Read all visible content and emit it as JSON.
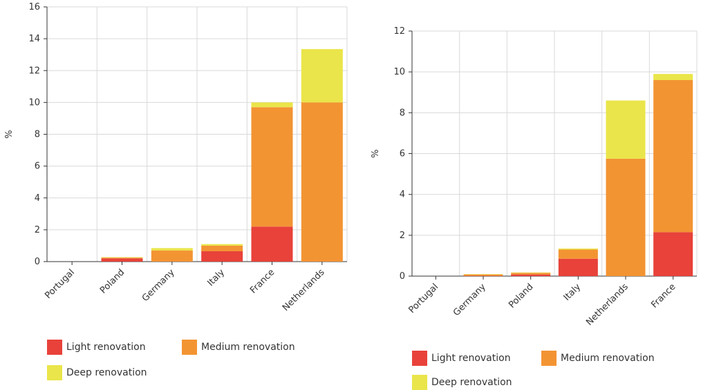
{
  "chart_data": [
    {
      "type": "bar",
      "stacked": true,
      "categories": [
        "Portugal",
        "Poland",
        "Germany",
        "Italy",
        "France",
        "Netherlands"
      ],
      "series": [
        {
          "name": "Light renovation",
          "color": "#e8423a",
          "values": [
            0,
            0.2,
            0,
            0.65,
            2.2,
            0
          ]
        },
        {
          "name": "Medium renovation",
          "color": "#f39433",
          "values": [
            0,
            0.05,
            0.7,
            0.35,
            7.5,
            10.0
          ]
        },
        {
          "name": "Deep renovation",
          "color": "#eae54a",
          "values": [
            0,
            0.03,
            0.15,
            0.1,
            0.3,
            3.35
          ]
        }
      ],
      "ylabel": "%",
      "ylim": [
        0,
        16
      ],
      "yticks": [
        "0",
        "2",
        "4",
        "6",
        "8",
        "10",
        "12",
        "14",
        "16"
      ],
      "grid": true,
      "legend": "bottom"
    },
    {
      "type": "bar",
      "stacked": true,
      "categories": [
        "Portugal",
        "Germany",
        "Poland",
        "Italy",
        "Netherlands",
        "France"
      ],
      "series": [
        {
          "name": "Light renovation",
          "color": "#e8423a",
          "values": [
            0,
            0.02,
            0.08,
            0.85,
            0,
            2.15
          ]
        },
        {
          "name": "Medium renovation",
          "color": "#f39433",
          "values": [
            0,
            0.06,
            0.08,
            0.45,
            5.75,
            7.45
          ]
        },
        {
          "name": "Deep renovation",
          "color": "#eae54a",
          "values": [
            0,
            0.02,
            0.02,
            0.05,
            2.85,
            0.3
          ]
        }
      ],
      "ylabel": "%",
      "ylim": [
        0,
        12
      ],
      "yticks": [
        "0",
        "2",
        "4",
        "6",
        "8",
        "10",
        "12"
      ],
      "grid": true,
      "legend": "bottom"
    }
  ]
}
